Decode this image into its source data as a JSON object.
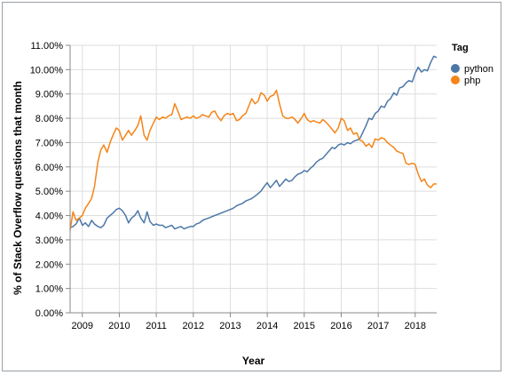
{
  "chart_data": {
    "type": "line",
    "xlabel": "Year",
    "ylabel": "% of Stack Overflow questions that month",
    "ylim": [
      0,
      11
    ],
    "xlim": [
      2008.67,
      2018.58
    ],
    "y_ticks": [
      "0.00%",
      "1.00%",
      "2.00%",
      "3.00%",
      "4.00%",
      "5.00%",
      "6.00%",
      "7.00%",
      "8.00%",
      "9.00%",
      "10.00%",
      "11.00%"
    ],
    "x_ticks": [
      "2009",
      "2010",
      "2011",
      "2012",
      "2013",
      "2014",
      "2015",
      "2016",
      "2017",
      "2018"
    ],
    "grid": true,
    "legend": {
      "title": "Tag",
      "placement": "top-right"
    },
    "series": [
      {
        "name": "python",
        "color": "#4c78a8",
        "points": [
          [
            2008.67,
            3.5
          ],
          [
            2008.75,
            3.55
          ],
          [
            2008.83,
            3.65
          ],
          [
            2008.92,
            3.9
          ],
          [
            2009.0,
            3.6
          ],
          [
            2009.08,
            3.7
          ],
          [
            2009.17,
            3.55
          ],
          [
            2009.25,
            3.8
          ],
          [
            2009.33,
            3.65
          ],
          [
            2009.42,
            3.55
          ],
          [
            2009.5,
            3.5
          ],
          [
            2009.58,
            3.6
          ],
          [
            2009.67,
            3.9
          ],
          [
            2009.75,
            4.0
          ],
          [
            2009.83,
            4.1
          ],
          [
            2009.92,
            4.25
          ],
          [
            2010.0,
            4.3
          ],
          [
            2010.08,
            4.2
          ],
          [
            2010.17,
            4.0
          ],
          [
            2010.25,
            3.7
          ],
          [
            2010.33,
            3.9
          ],
          [
            2010.42,
            4.0
          ],
          [
            2010.5,
            4.2
          ],
          [
            2010.58,
            3.9
          ],
          [
            2010.67,
            3.7
          ],
          [
            2010.75,
            4.15
          ],
          [
            2010.83,
            3.75
          ],
          [
            2010.92,
            3.6
          ],
          [
            2011.0,
            3.65
          ],
          [
            2011.08,
            3.6
          ],
          [
            2011.17,
            3.6
          ],
          [
            2011.25,
            3.5
          ],
          [
            2011.33,
            3.55
          ],
          [
            2011.42,
            3.6
          ],
          [
            2011.5,
            3.45
          ],
          [
            2011.58,
            3.5
          ],
          [
            2011.67,
            3.55
          ],
          [
            2011.75,
            3.45
          ],
          [
            2011.83,
            3.5
          ],
          [
            2011.92,
            3.55
          ],
          [
            2012.0,
            3.55
          ],
          [
            2012.08,
            3.65
          ],
          [
            2012.17,
            3.7
          ],
          [
            2012.25,
            3.8
          ],
          [
            2012.33,
            3.85
          ],
          [
            2012.42,
            3.9
          ],
          [
            2012.5,
            3.95
          ],
          [
            2012.58,
            4.0
          ],
          [
            2012.67,
            4.05
          ],
          [
            2012.75,
            4.1
          ],
          [
            2012.83,
            4.15
          ],
          [
            2012.92,
            4.2
          ],
          [
            2013.0,
            4.25
          ],
          [
            2013.08,
            4.3
          ],
          [
            2013.17,
            4.4
          ],
          [
            2013.25,
            4.45
          ],
          [
            2013.33,
            4.5
          ],
          [
            2013.42,
            4.6
          ],
          [
            2013.5,
            4.65
          ],
          [
            2013.58,
            4.7
          ],
          [
            2013.67,
            4.8
          ],
          [
            2013.75,
            4.9
          ],
          [
            2013.83,
            5.0
          ],
          [
            2013.92,
            5.2
          ],
          [
            2014.0,
            5.35
          ],
          [
            2014.08,
            5.15
          ],
          [
            2014.17,
            5.3
          ],
          [
            2014.25,
            5.45
          ],
          [
            2014.33,
            5.2
          ],
          [
            2014.42,
            5.35
          ],
          [
            2014.5,
            5.5
          ],
          [
            2014.58,
            5.4
          ],
          [
            2014.67,
            5.45
          ],
          [
            2014.75,
            5.6
          ],
          [
            2014.83,
            5.7
          ],
          [
            2014.92,
            5.75
          ],
          [
            2015.0,
            5.85
          ],
          [
            2015.08,
            5.8
          ],
          [
            2015.17,
            5.95
          ],
          [
            2015.25,
            6.05
          ],
          [
            2015.33,
            6.2
          ],
          [
            2015.42,
            6.3
          ],
          [
            2015.5,
            6.35
          ],
          [
            2015.58,
            6.5
          ],
          [
            2015.67,
            6.65
          ],
          [
            2015.75,
            6.8
          ],
          [
            2015.83,
            6.75
          ],
          [
            2015.92,
            6.9
          ],
          [
            2016.0,
            6.95
          ],
          [
            2016.08,
            6.9
          ],
          [
            2016.17,
            7.0
          ],
          [
            2016.25,
            6.95
          ],
          [
            2016.33,
            7.05
          ],
          [
            2016.42,
            7.1
          ],
          [
            2016.5,
            7.15
          ],
          [
            2016.58,
            7.4
          ],
          [
            2016.67,
            7.7
          ],
          [
            2016.75,
            8.0
          ],
          [
            2016.83,
            7.95
          ],
          [
            2016.92,
            8.2
          ],
          [
            2017.0,
            8.3
          ],
          [
            2017.08,
            8.5
          ],
          [
            2017.17,
            8.45
          ],
          [
            2017.25,
            8.7
          ],
          [
            2017.33,
            8.8
          ],
          [
            2017.42,
            9.05
          ],
          [
            2017.5,
            8.95
          ],
          [
            2017.58,
            9.25
          ],
          [
            2017.67,
            9.3
          ],
          [
            2017.75,
            9.45
          ],
          [
            2017.83,
            9.55
          ],
          [
            2017.92,
            9.5
          ],
          [
            2018.0,
            9.85
          ],
          [
            2018.08,
            10.1
          ],
          [
            2018.17,
            9.9
          ],
          [
            2018.25,
            10.0
          ],
          [
            2018.33,
            9.95
          ],
          [
            2018.42,
            10.3
          ],
          [
            2018.5,
            10.55
          ],
          [
            2018.58,
            10.5
          ]
        ]
      },
      {
        "name": "php",
        "color": "#f58518",
        "points": [
          [
            2008.67,
            3.4
          ],
          [
            2008.75,
            4.15
          ],
          [
            2008.83,
            3.8
          ],
          [
            2008.92,
            3.9
          ],
          [
            2009.0,
            4.0
          ],
          [
            2009.08,
            4.3
          ],
          [
            2009.17,
            4.5
          ],
          [
            2009.25,
            4.7
          ],
          [
            2009.33,
            5.2
          ],
          [
            2009.42,
            6.2
          ],
          [
            2009.5,
            6.7
          ],
          [
            2009.58,
            6.9
          ],
          [
            2009.67,
            6.6
          ],
          [
            2009.75,
            7.0
          ],
          [
            2009.83,
            7.3
          ],
          [
            2009.92,
            7.6
          ],
          [
            2010.0,
            7.5
          ],
          [
            2010.08,
            7.1
          ],
          [
            2010.17,
            7.3
          ],
          [
            2010.25,
            7.5
          ],
          [
            2010.33,
            7.3
          ],
          [
            2010.42,
            7.5
          ],
          [
            2010.5,
            7.7
          ],
          [
            2010.58,
            8.1
          ],
          [
            2010.67,
            7.3
          ],
          [
            2010.75,
            7.1
          ],
          [
            2010.83,
            7.5
          ],
          [
            2010.92,
            7.8
          ],
          [
            2011.0,
            8.05
          ],
          [
            2011.08,
            7.95
          ],
          [
            2011.17,
            8.05
          ],
          [
            2011.25,
            8.0
          ],
          [
            2011.33,
            8.1
          ],
          [
            2011.42,
            8.15
          ],
          [
            2011.5,
            8.6
          ],
          [
            2011.58,
            8.3
          ],
          [
            2011.67,
            7.95
          ],
          [
            2011.75,
            8.0
          ],
          [
            2011.83,
            8.05
          ],
          [
            2011.92,
            8.0
          ],
          [
            2012.0,
            8.1
          ],
          [
            2012.08,
            8.0
          ],
          [
            2012.17,
            8.05
          ],
          [
            2012.25,
            8.15
          ],
          [
            2012.33,
            8.1
          ],
          [
            2012.42,
            8.05
          ],
          [
            2012.5,
            8.25
          ],
          [
            2012.58,
            8.3
          ],
          [
            2012.67,
            8.05
          ],
          [
            2012.75,
            7.9
          ],
          [
            2012.83,
            8.1
          ],
          [
            2012.92,
            8.2
          ],
          [
            2013.0,
            8.15
          ],
          [
            2013.08,
            8.2
          ],
          [
            2013.17,
            7.9
          ],
          [
            2013.25,
            7.95
          ],
          [
            2013.33,
            8.1
          ],
          [
            2013.42,
            8.2
          ],
          [
            2013.5,
            8.5
          ],
          [
            2013.58,
            8.8
          ],
          [
            2013.67,
            8.6
          ],
          [
            2013.75,
            8.7
          ],
          [
            2013.83,
            9.05
          ],
          [
            2013.92,
            8.95
          ],
          [
            2014.0,
            8.7
          ],
          [
            2014.08,
            8.9
          ],
          [
            2014.17,
            8.95
          ],
          [
            2014.25,
            9.15
          ],
          [
            2014.33,
            8.6
          ],
          [
            2014.42,
            8.1
          ],
          [
            2014.5,
            8.0
          ],
          [
            2014.58,
            8.0
          ],
          [
            2014.67,
            8.05
          ],
          [
            2014.75,
            7.95
          ],
          [
            2014.83,
            7.8
          ],
          [
            2014.92,
            8.0
          ],
          [
            2015.0,
            8.2
          ],
          [
            2015.08,
            7.95
          ],
          [
            2015.17,
            7.85
          ],
          [
            2015.25,
            7.9
          ],
          [
            2015.33,
            7.85
          ],
          [
            2015.42,
            7.8
          ],
          [
            2015.5,
            7.95
          ],
          [
            2015.58,
            7.85
          ],
          [
            2015.67,
            7.7
          ],
          [
            2015.75,
            7.55
          ],
          [
            2015.83,
            7.4
          ],
          [
            2015.92,
            7.6
          ],
          [
            2016.0,
            8.0
          ],
          [
            2016.08,
            7.9
          ],
          [
            2016.17,
            7.5
          ],
          [
            2016.25,
            7.6
          ],
          [
            2016.33,
            7.35
          ],
          [
            2016.42,
            7.4
          ],
          [
            2016.5,
            7.1
          ],
          [
            2016.58,
            7.05
          ],
          [
            2016.67,
            6.85
          ],
          [
            2016.75,
            6.95
          ],
          [
            2016.83,
            6.8
          ],
          [
            2016.92,
            7.15
          ],
          [
            2017.0,
            7.1
          ],
          [
            2017.08,
            7.2
          ],
          [
            2017.17,
            7.15
          ],
          [
            2017.25,
            7.0
          ],
          [
            2017.33,
            6.9
          ],
          [
            2017.42,
            6.8
          ],
          [
            2017.5,
            6.65
          ],
          [
            2017.58,
            6.6
          ],
          [
            2017.67,
            6.55
          ],
          [
            2017.75,
            6.15
          ],
          [
            2017.83,
            6.1
          ],
          [
            2017.92,
            6.15
          ],
          [
            2018.0,
            6.1
          ],
          [
            2018.08,
            5.7
          ],
          [
            2018.17,
            5.4
          ],
          [
            2018.25,
            5.5
          ],
          [
            2018.33,
            5.25
          ],
          [
            2018.42,
            5.15
          ],
          [
            2018.5,
            5.3
          ],
          [
            2018.58,
            5.3
          ]
        ]
      }
    ]
  }
}
